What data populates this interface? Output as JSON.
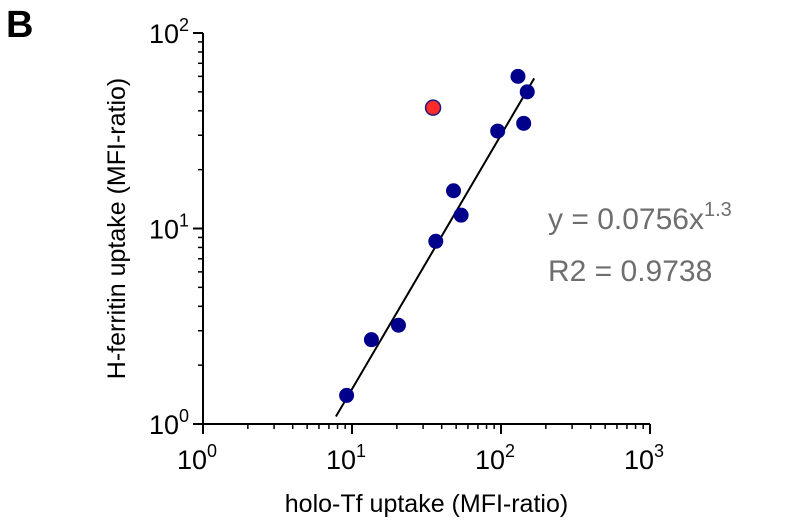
{
  "panel_label": "B",
  "chart_data": {
    "type": "scatter",
    "title": "",
    "xlabel": "holo-Tf uptake (MFI-ratio)",
    "ylabel": "H-ferritin uptake (MFI-ratio)",
    "xscale": "log",
    "yscale": "log",
    "xlim": [
      1,
      1000
    ],
    "ylim": [
      1,
      100
    ],
    "x_ticks": [
      {
        "base": "10",
        "exp": "0"
      },
      {
        "base": "10",
        "exp": "1"
      },
      {
        "base": "10",
        "exp": "2"
      },
      {
        "base": "10",
        "exp": "3"
      }
    ],
    "y_ticks": [
      {
        "base": "10",
        "exp": "0"
      },
      {
        "base": "10",
        "exp": "1"
      },
      {
        "base": "10",
        "exp": "2"
      }
    ],
    "grid": false,
    "series": [
      {
        "color": "#00008b",
        "points": [
          {
            "x": 9.2,
            "y": 1.4
          },
          {
            "x": 13.5,
            "y": 2.7
          },
          {
            "x": 20.5,
            "y": 3.2
          },
          {
            "x": 36.5,
            "y": 8.6
          },
          {
            "x": 48,
            "y": 15.6
          },
          {
            "x": 54,
            "y": 11.7
          },
          {
            "x": 95,
            "y": 31.5
          },
          {
            "x": 130,
            "y": 60
          },
          {
            "x": 142,
            "y": 34.5
          },
          {
            "x": 150,
            "y": 50
          }
        ]
      },
      {
        "color": "#ff2a2a",
        "points": [
          {
            "x": 35,
            "y": 41.5
          }
        ]
      }
    ],
    "fit_line": {
      "a": 0.0756,
      "b": 1.3,
      "x_range": [
        7.8,
        167
      ],
      "color": "#000000"
    },
    "annotations": {
      "equation_prefix": "y = 0.0756x",
      "equation_exponent": "1.3",
      "r2": "R2 = 0.9738"
    }
  }
}
